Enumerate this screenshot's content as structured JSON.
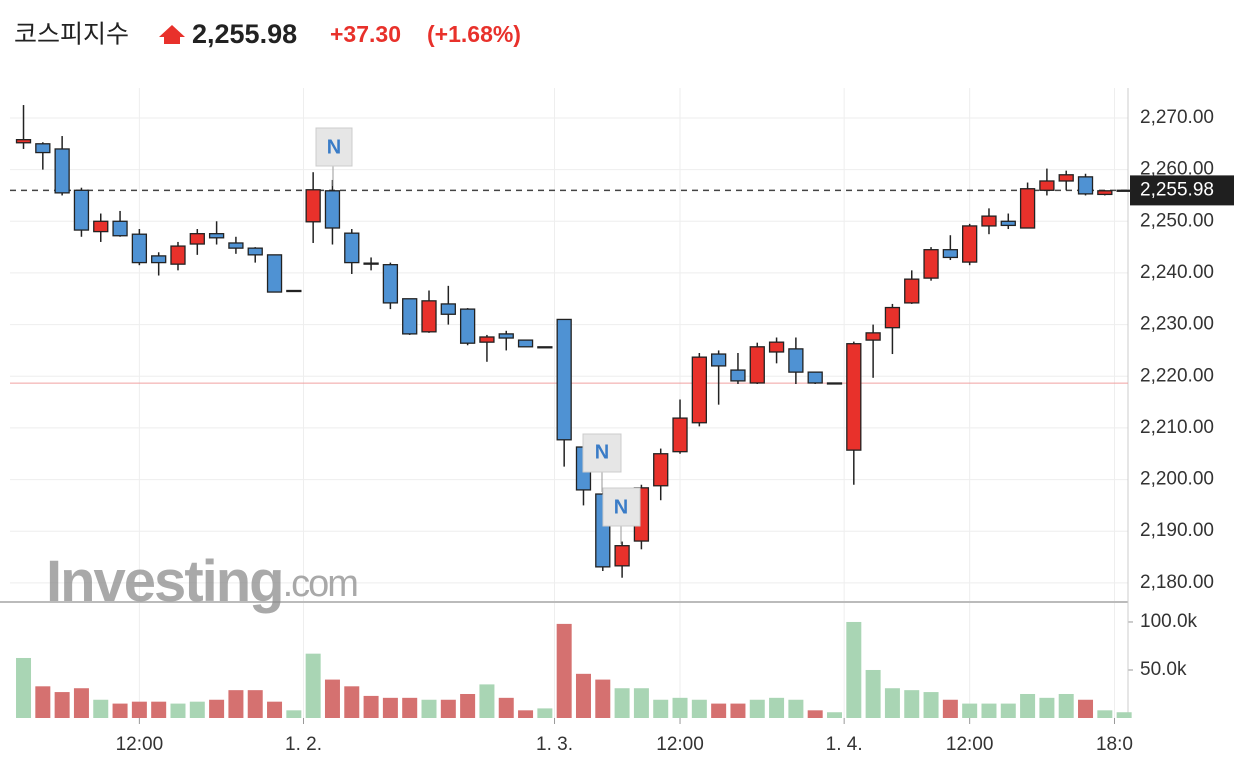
{
  "header": {
    "name": "코스피지수",
    "change": "+37.30",
    "change_pct": "(+1.68%)"
  },
  "watermark": {
    "brand": "Investing",
    "suffix": ".com"
  },
  "news_markers": [
    "N",
    "N",
    "N"
  ],
  "chart_data": {
    "type": "candlestick",
    "series": [
      {
        "up_color": "#e8312b",
        "down_color": "#4f92d3",
        "open": [
          2265.2,
          2265,
          2264,
          2256,
          2248,
          2250,
          2247.5,
          2243.3,
          2241.7,
          2245.6,
          2247.6,
          2245.8,
          2244.8,
          2243.5,
          2236.6,
          2249.9,
          2255.9,
          2247.7,
          2241.9,
          2241.6,
          2235,
          2228.6,
          2234,
          2233,
          2226.6,
          2228.2,
          2227,
          2225.7,
          2231,
          2206.3,
          2197.2,
          2183.3,
          2188.1,
          2198.8,
          2205.4,
          2211,
          2224.3,
          2221.2,
          2218.7,
          2224.7,
          2225.3,
          2220.8,
          2218.7,
          2205.7,
          2227,
          2229.4,
          2234.2,
          2239,
          2244.5,
          2242.1,
          2249.1,
          2250,
          2248.7,
          2256,
          2257.8,
          2258.6,
          2255.2,
          2256
        ],
        "high": [
          2272.5,
          2265.3,
          2266.5,
          2256.5,
          2251.5,
          2252,
          2248.5,
          2244,
          2246,
          2248.5,
          2250,
          2247,
          2245,
          2243.5,
          2236.6,
          2259.5,
          2258,
          2248.5,
          2243,
          2242,
          2235,
          2236.6,
          2237.5,
          2233.2,
          2228,
          2228.8,
          2227,
          2225.7,
          2231,
          2206.5,
          2197.5,
          2188,
          2199,
          2206,
          2215.5,
          2224.5,
          2225,
          2224.5,
          2226.5,
          2227.5,
          2227.5,
          2220.8,
          2218.7,
          2226.7,
          2230,
          2234,
          2240.5,
          2245,
          2247.3,
          2249.5,
          2252.5,
          2251.5,
          2257.5,
          2260.2,
          2259.8,
          2259.2,
          2256,
          2256
        ],
        "low": [
          2264,
          2260,
          2255,
          2247,
          2246,
          2247,
          2241.5,
          2239.5,
          2240.5,
          2243.5,
          2245.5,
          2243.7,
          2242,
          2236.3,
          2236.5,
          2245.8,
          2245.5,
          2239.8,
          2240.5,
          2233,
          2228,
          2228.4,
          2230,
          2226,
          2222.8,
          2225,
          2225.7,
          2225.7,
          2202.5,
          2195,
          2182.3,
          2181,
          2186.5,
          2196,
          2205,
          2210.3,
          2214.5,
          2218.5,
          2218.5,
          2222.5,
          2218.5,
          2218.5,
          2218.7,
          2199,
          2219.7,
          2224.3,
          2234,
          2238.5,
          2242.5,
          2241.5,
          2247.5,
          2248.5,
          2248.7,
          2255,
          2256,
          2255,
          2255,
          2256
        ],
        "close": [
          2265.8,
          2263.3,
          2255.5,
          2248.3,
          2250,
          2247.2,
          2242,
          2242,
          2245.2,
          2247.6,
          2246.8,
          2244.8,
          2243.5,
          2236.3,
          2236.5,
          2256.1,
          2248.7,
          2242,
          2241.7,
          2234.2,
          2228.2,
          2234.6,
          2232,
          2226.4,
          2227.6,
          2227.4,
          2225.7,
          2225.7,
          2207.7,
          2198,
          2183.1,
          2187.2,
          2198.4,
          2205,
          2211.9,
          2223.7,
          2222,
          2219.1,
          2225.7,
          2226.6,
          2220.8,
          2218.7,
          2218.7,
          2226.3,
          2228.4,
          2233.3,
          2238.8,
          2244.5,
          2243,
          2249.1,
          2251,
          2249.2,
          2256.3,
          2257.8,
          2259,
          2255.3,
          2255.9,
          2256
        ]
      }
    ],
    "last_price": {
      "value": 2255.98,
      "label": "2,255.98"
    },
    "prev_close": 2218.68,
    "xlim": [
      -0.7,
      57.2
    ],
    "xticks": [
      {
        "value": 6,
        "label": "12:00"
      },
      {
        "value": 14.5,
        "label": "1. 2."
      },
      {
        "value": 27.5,
        "label": "1. 3."
      },
      {
        "value": 34,
        "label": "12:00"
      },
      {
        "value": 42.5,
        "label": "1. 4."
      },
      {
        "value": 49,
        "label": "12:00"
      },
      {
        "value": 56.5,
        "label": "18:0"
      }
    ],
    "ylim": [
      2176.3,
      2275.8
    ],
    "yticks": [
      {
        "value": 2180,
        "label": "2,180.00"
      },
      {
        "value": 2190,
        "label": "2,190.00"
      },
      {
        "value": 2200,
        "label": "2,200.00"
      },
      {
        "value": 2210,
        "label": "2,210.00"
      },
      {
        "value": 2220,
        "label": "2,220.00"
      },
      {
        "value": 2230,
        "label": "2,230.00"
      },
      {
        "value": 2240,
        "label": "2,240.00"
      },
      {
        "value": 2250,
        "label": "2,250.00"
      },
      {
        "value": 2260,
        "label": "2,260.00"
      },
      {
        "value": 2270,
        "label": "2,270.00"
      }
    ],
    "volume": {
      "values": [
        62.5,
        33,
        27,
        31,
        19,
        15,
        17,
        17,
        15,
        17,
        19,
        29,
        29,
        17,
        8,
        67,
        40,
        33,
        23,
        21,
        21,
        19,
        19,
        25,
        35,
        21,
        8,
        10,
        98,
        46,
        40,
        31,
        31,
        19,
        21,
        19,
        15,
        15,
        19,
        21,
        19,
        8,
        6,
        100,
        50,
        31,
        29,
        27,
        19,
        15,
        15,
        15,
        25,
        21,
        25,
        19,
        8,
        6
      ],
      "colors": [
        "g",
        "r",
        "r",
        "r",
        "g",
        "r",
        "r",
        "r",
        "g",
        "g",
        "r",
        "r",
        "r",
        "r",
        "g",
        "g",
        "r",
        "r",
        "r",
        "r",
        "r",
        "g",
        "r",
        "r",
        "g",
        "r",
        "r",
        "g",
        "r",
        "r",
        "r",
        "g",
        "g",
        "g",
        "g",
        "g",
        "r",
        "r",
        "g",
        "g",
        "g",
        "r",
        "g",
        "g",
        "g",
        "g",
        "g",
        "g",
        "r",
        "g",
        "g",
        "g",
        "g",
        "g",
        "g",
        "r",
        "g",
        "g"
      ],
      "palette": {
        "r": "#d57170",
        "g": "#a9d5b4"
      },
      "ylim": [
        0,
        120.8
      ],
      "yticks": [
        {
          "value": 50,
          "label": "50.0k"
        },
        {
          "value": 100,
          "label": "100.0k"
        }
      ]
    },
    "grid": true
  }
}
